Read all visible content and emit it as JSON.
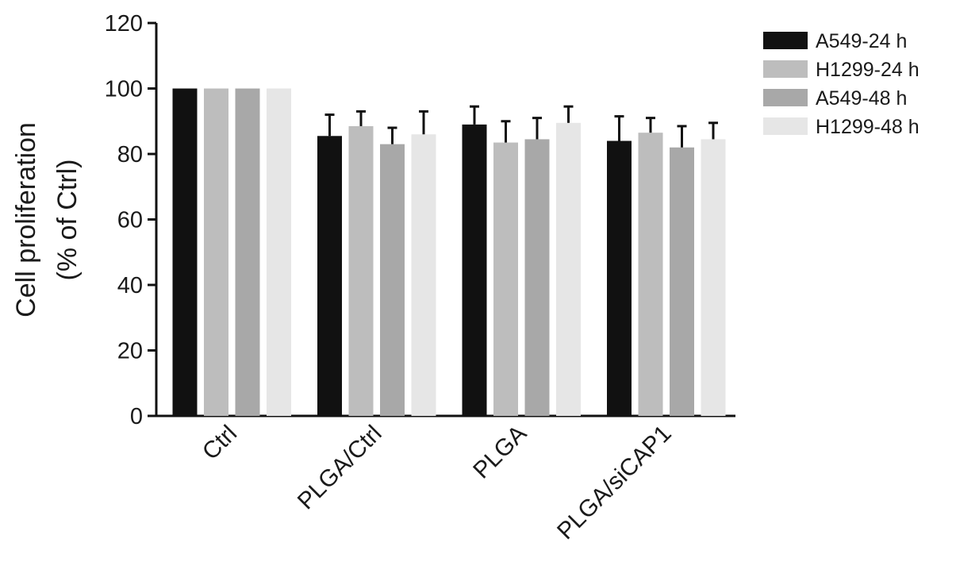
{
  "chart_data": {
    "type": "bar",
    "title": "",
    "xlabel": "",
    "ylabel_lines": [
      "Cell proliferation",
      "(% of Ctrl)"
    ],
    "ylim": [
      0,
      120
    ],
    "yticks": [
      0,
      20,
      40,
      60,
      80,
      100,
      120
    ],
    "grid": false,
    "legend_position": "top-right",
    "categories": [
      "Ctrl",
      "PLGA/Ctrl",
      "PLGA",
      "PLGA/siCAP1"
    ],
    "series": [
      {
        "name": "A549-24 h",
        "color": "#111111",
        "values": [
          100,
          85.5,
          89,
          84
        ],
        "errors": [
          0,
          6.5,
          5.5,
          7.5
        ]
      },
      {
        "name": "H1299-24 h",
        "color": "#bdbdbd",
        "values": [
          100,
          88.5,
          83.5,
          86.5
        ],
        "errors": [
          0,
          4.5,
          6.5,
          4.5
        ]
      },
      {
        "name": "A549-48 h",
        "color": "#a8a8a8",
        "values": [
          100,
          83,
          84.5,
          82
        ],
        "errors": [
          0,
          5,
          6.5,
          6.5
        ]
      },
      {
        "name": "H1299-48 h",
        "color": "#e6e6e6",
        "values": [
          100,
          86,
          89.5,
          84.5
        ],
        "errors": [
          0,
          7,
          5,
          5
        ]
      }
    ]
  }
}
